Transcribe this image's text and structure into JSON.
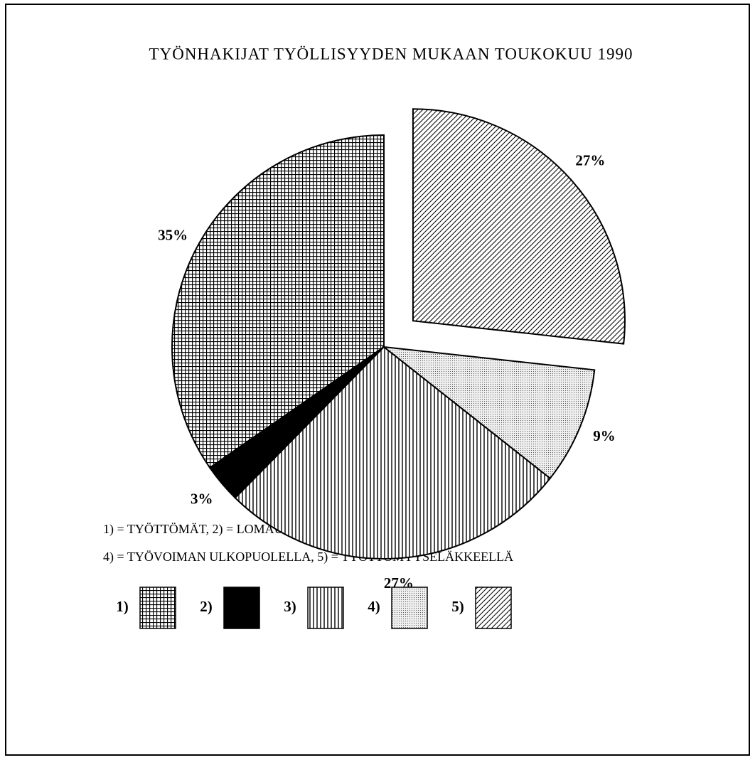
{
  "chart_data": {
    "type": "pie",
    "title": "TYÖNHAKIJAT TYÖLLISYYDEN MUKAAN TOUKOKUU 1990",
    "categories": [
      "1)",
      "2)",
      "3)",
      "4)",
      "5)"
    ],
    "values": [
      35,
      3,
      27,
      9,
      27
    ],
    "value_labels": [
      "35%",
      "3%",
      "27%",
      "9%",
      "27%"
    ],
    "patterns": [
      "grid",
      "solid",
      "vertical",
      "dots",
      "diagonal"
    ],
    "explode": [
      false,
      false,
      false,
      false,
      true
    ],
    "direction": "counterclockwise",
    "notes": [
      "1) = TYÖTTÖMÄT, 2) = LOMAUTETUT, 3) = TYÖSSÄ OLEVAT,",
      "4) = TYÖVOIMAN ULKOPUOLELLA, 5) = TYÖTTÖMYYSELÄKKEELLÄ"
    ]
  }
}
